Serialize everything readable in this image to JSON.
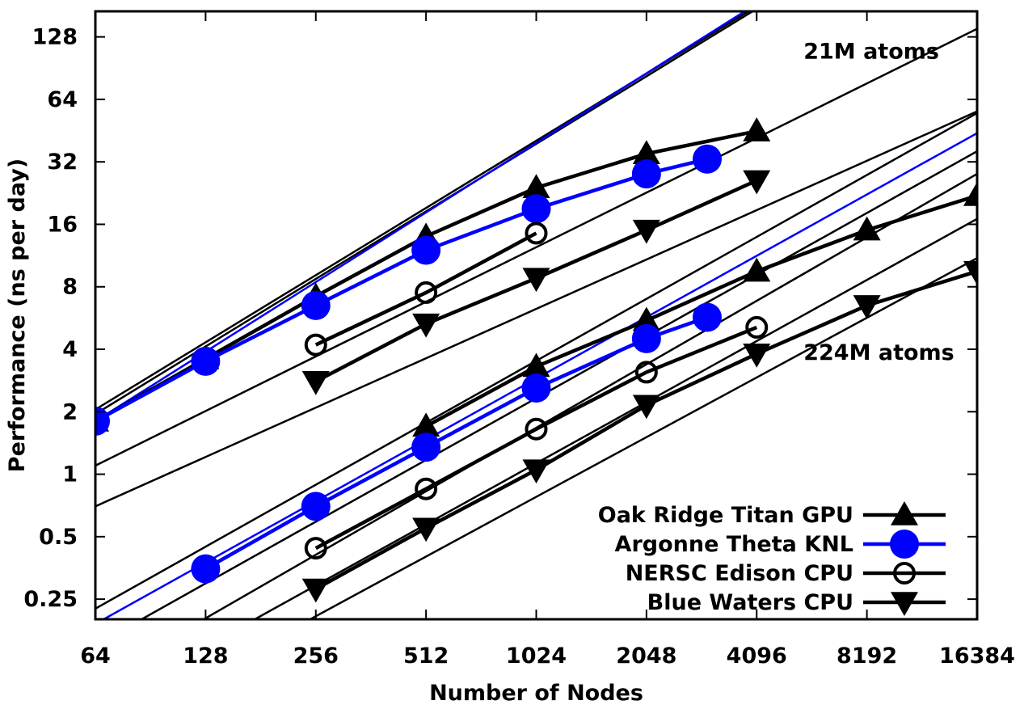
{
  "chart_data": {
    "type": "line",
    "title": "",
    "xlabel": "Number of Nodes",
    "ylabel": "Performance (ns per day)",
    "x_scale": "log2",
    "y_scale": "log2",
    "xlim": [
      64,
      16384
    ],
    "ylim": [
      0.2,
      170
    ],
    "x_ticks": [
      64,
      128,
      256,
      512,
      1024,
      2048,
      4096,
      8192,
      16384
    ],
    "x_tick_labels": [
      "64",
      "128",
      "256",
      "512",
      "1024",
      "2048",
      "4096",
      "8192",
      "16384"
    ],
    "y_ticks": [
      0.25,
      0.5,
      1,
      2,
      4,
      8,
      16,
      32,
      64,
      128
    ],
    "y_tick_labels": [
      "0.25",
      "0.5",
      "1",
      "2",
      "4",
      "8",
      "16",
      "32",
      "64",
      "128"
    ],
    "grid": false,
    "legend_position": "bottom-right",
    "annotations": [
      {
        "text": "21M atoms",
        "x": 5500,
        "y": 110
      },
      {
        "text": "224M atoms",
        "x": 5500,
        "y": 3.9
      }
    ],
    "series": [
      {
        "name": "Oak Ridge Titan GPU",
        "color": "#000000",
        "marker": "triangle-up",
        "legend": true,
        "x": [
          64,
          128,
          256,
          512,
          1024,
          2048,
          4096
        ],
        "y": [
          1.8,
          3.6,
          7.2,
          14,
          24,
          35,
          45
        ]
      },
      {
        "name": "Argonne Theta KNL",
        "color": "#0000ff",
        "marker": "circle-filled",
        "legend": true,
        "x": [
          64,
          128,
          256,
          512,
          1024,
          2048,
          3000
        ],
        "y": [
          1.8,
          3.5,
          6.5,
          12,
          19,
          28,
          33
        ]
      },
      {
        "name": "NERSC Edison CPU",
        "color": "#000000",
        "marker": "circle-open",
        "legend": true,
        "x": [
          256,
          512,
          1024
        ],
        "y": [
          4.2,
          7.5,
          14.5
        ]
      },
      {
        "name": "Blue Waters CPU",
        "color": "#000000",
        "marker": "triangle-down",
        "legend": true,
        "x": [
          256,
          512,
          1024,
          2048,
          4096
        ],
        "y": [
          2.8,
          5.3,
          8.8,
          15,
          26
        ]
      },
      {
        "name": "",
        "color": "#000000",
        "marker": "triangle-up",
        "legend": false,
        "x": [
          512,
          1024,
          2048,
          4096,
          8192,
          16384
        ],
        "y": [
          1.7,
          3.3,
          5.5,
          9.5,
          15,
          22
        ]
      },
      {
        "name": "",
        "color": "#0000ff",
        "marker": "circle-filled",
        "legend": false,
        "x": [
          128,
          256,
          512,
          1024,
          2048,
          3000
        ],
        "y": [
          0.35,
          0.7,
          1.35,
          2.6,
          4.5,
          5.7
        ]
      },
      {
        "name": "",
        "color": "#000000",
        "marker": "circle-open",
        "legend": false,
        "x": [
          256,
          512,
          1024,
          2048,
          4096
        ],
        "y": [
          0.44,
          0.85,
          1.65,
          3.1,
          5.1
        ]
      },
      {
        "name": "",
        "color": "#000000",
        "marker": "triangle-down",
        "legend": false,
        "x": [
          256,
          512,
          1024,
          2048,
          4096,
          8192,
          16384
        ],
        "y": [
          0.28,
          0.55,
          1.05,
          2.15,
          3.8,
          6.5,
          9.5
        ]
      }
    ],
    "ideal_lines": [
      {
        "color": "#000000",
        "x": [
          64,
          4000
        ],
        "y": [
          2.05,
          175
        ]
      },
      {
        "color": "#000000",
        "x": [
          64,
          4100
        ],
        "y": [
          1.95,
          175
        ]
      },
      {
        "color": "#0000ff",
        "x": [
          64,
          3900
        ],
        "y": [
          1.8,
          175
        ]
      },
      {
        "color": "#000000",
        "x": [
          64,
          16384
        ],
        "y": [
          1.1,
          140
        ]
      },
      {
        "color": "#000000",
        "x": [
          64,
          16384
        ],
        "y": [
          0.7,
          56
        ]
      },
      {
        "color": "#000000",
        "x": [
          64,
          16384
        ],
        "y": [
          0.225,
          55
        ]
      },
      {
        "color": "#0000ff",
        "x": [
          64,
          16384
        ],
        "y": [
          0.19,
          44
        ]
      },
      {
        "color": "#000000",
        "x": [
          64,
          16384
        ],
        "y": [
          0.15,
          36
        ]
      },
      {
        "color": "#000000",
        "x": [
          64,
          16384
        ],
        "y": [
          0.1,
          28
        ]
      },
      {
        "color": "#000000",
        "x": [
          64,
          16384
        ],
        "y": [
          0.075,
          17
        ]
      },
      {
        "color": "#000000",
        "x": [
          64,
          16384
        ],
        "y": [
          0.055,
          11
        ]
      }
    ]
  }
}
